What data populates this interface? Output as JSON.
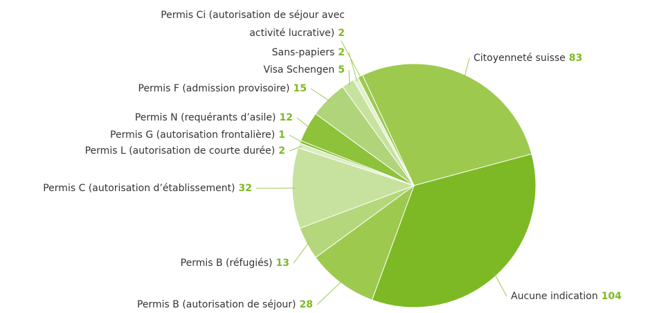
{
  "chart_data": {
    "type": "pie",
    "categories": [
      "Citoyenneté suisse",
      "Aucune indication",
      "Permis B (autorisation de séjour)",
      "Permis B (réfugiés)",
      "Permis C (autorisation d’établissement)",
      "Permis L (autorisation de courte durée)",
      "Permis G (autorisation frontalière)",
      "Permis N (requérants d’asile)",
      "Permis F (admission provisoire)",
      "Visa Schengen",
      "Sans-papiers",
      "Permis Ci (autorisation de séjour avec activité lucrative)"
    ],
    "values": [
      83,
      104,
      28,
      13,
      32,
      2,
      1,
      12,
      15,
      5,
      2,
      2
    ],
    "colors": [
      "#9dc94f",
      "#7db924",
      "#9dc94f",
      "#b5d77b",
      "#c7e29e",
      "#dcecc4",
      "#7db924",
      "#8ec23a",
      "#b0d47a",
      "#c7e29e",
      "#e3f0cf",
      "#9dc94f"
    ]
  }
}
